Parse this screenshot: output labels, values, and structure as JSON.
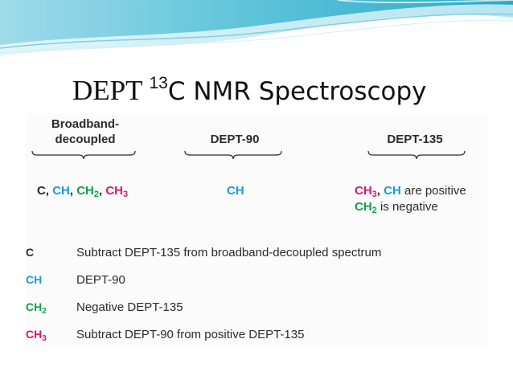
{
  "slide": {
    "title_part1": "DEPT",
    "title_sup": "13",
    "title_part2": "C NMR Spectroscopy"
  },
  "columns": [
    {
      "header_line1": "Broadband-",
      "header_line2": "decoupled"
    },
    {
      "header_line1": "DEPT-90",
      "header_line2": ""
    },
    {
      "header_line1": "DEPT-135",
      "header_line2": ""
    }
  ],
  "signals": {
    "broadband": {
      "c": "C",
      "comma": ",",
      "ch": "CH",
      "ch2_base": "CH",
      "ch2_sub": "2",
      "ch3_base": "CH",
      "ch3_sub": "3"
    },
    "dept90": {
      "ch": "CH"
    },
    "dept135": {
      "ch3_base": "CH",
      "ch3_sub": "3",
      "comma": ",",
      "ch": "CH",
      "positive_text": "are positive",
      "ch2_base": "CH",
      "ch2_sub": "2",
      "negative_text": "is negative"
    }
  },
  "key": [
    {
      "base": "C",
      "sub": "",
      "color": "#2b2b2b",
      "text": "Subtract DEPT-135 from broadband-decoupled spectrum"
    },
    {
      "base": "CH",
      "sub": "",
      "color": "#1c9ad6",
      "text": "DEPT-90"
    },
    {
      "base": "CH",
      "sub": "2",
      "color": "#0fa04a",
      "text": "Negative DEPT-135"
    },
    {
      "base": "CH",
      "sub": "3",
      "color": "#d6157a",
      "text": "Subtract DEPT-90 from positive DEPT-135"
    }
  ],
  "colors": {
    "dark": "#2b2b2b",
    "blue": "#1c9ad6",
    "green": "#0fa04a",
    "magenta": "#d6157a",
    "wave_teal": "#3fb6cf",
    "wave_light": "#bfe7f1"
  }
}
